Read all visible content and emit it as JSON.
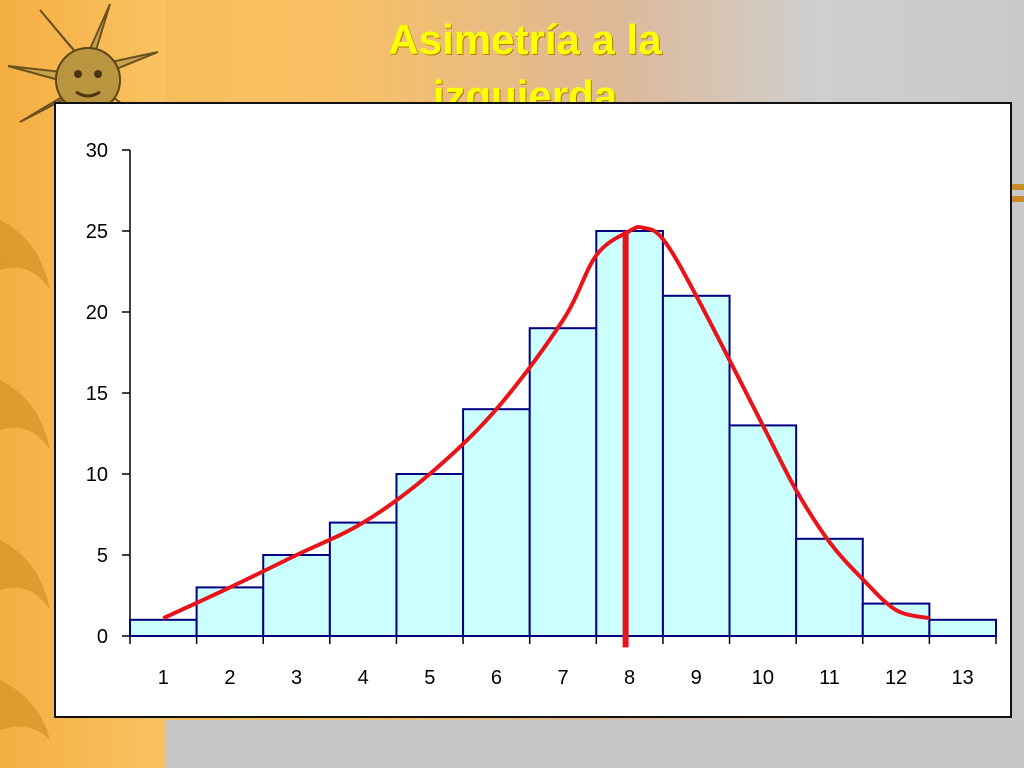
{
  "slide": {
    "title": "Asimetría a la izquierda"
  },
  "colors": {
    "background_left": "#f7b955",
    "background_right": "#cfcfcf",
    "title": "#ffff00",
    "bar_fill": "#ccffff",
    "bar_stroke": "#000080",
    "curve": "#e8141a",
    "marker_line": "#e8141a"
  },
  "icons": [
    "sun-icon",
    "flame-decoration-icon"
  ],
  "chart_data": {
    "type": "bar",
    "categories": [
      "1",
      "2",
      "3",
      "4",
      "5",
      "6",
      "7",
      "8",
      "9",
      "10",
      "11",
      "12",
      "13"
    ],
    "values": [
      1,
      3,
      5,
      7,
      10,
      14,
      19,
      25,
      21,
      13,
      6,
      2,
      1
    ],
    "ylim": [
      0,
      30
    ],
    "yticks": [
      0,
      5,
      10,
      15,
      20,
      25,
      30
    ],
    "grid": false,
    "overlay_curve": {
      "type": "line",
      "x": [
        1,
        2,
        3,
        4,
        5,
        6,
        7,
        7.5,
        8,
        8.2,
        8.5,
        9,
        10,
        10.5,
        11,
        11.5,
        12,
        12.5
      ],
      "y": [
        1.1,
        3,
        5,
        7,
        10,
        14,
        19.5,
        23.5,
        25,
        25.2,
        24.5,
        21,
        13,
        9,
        5.8,
        3.5,
        1.6,
        1.1
      ]
    },
    "vertical_marker": {
      "x": 8,
      "y_range": [
        -0.7,
        25
      ]
    }
  }
}
